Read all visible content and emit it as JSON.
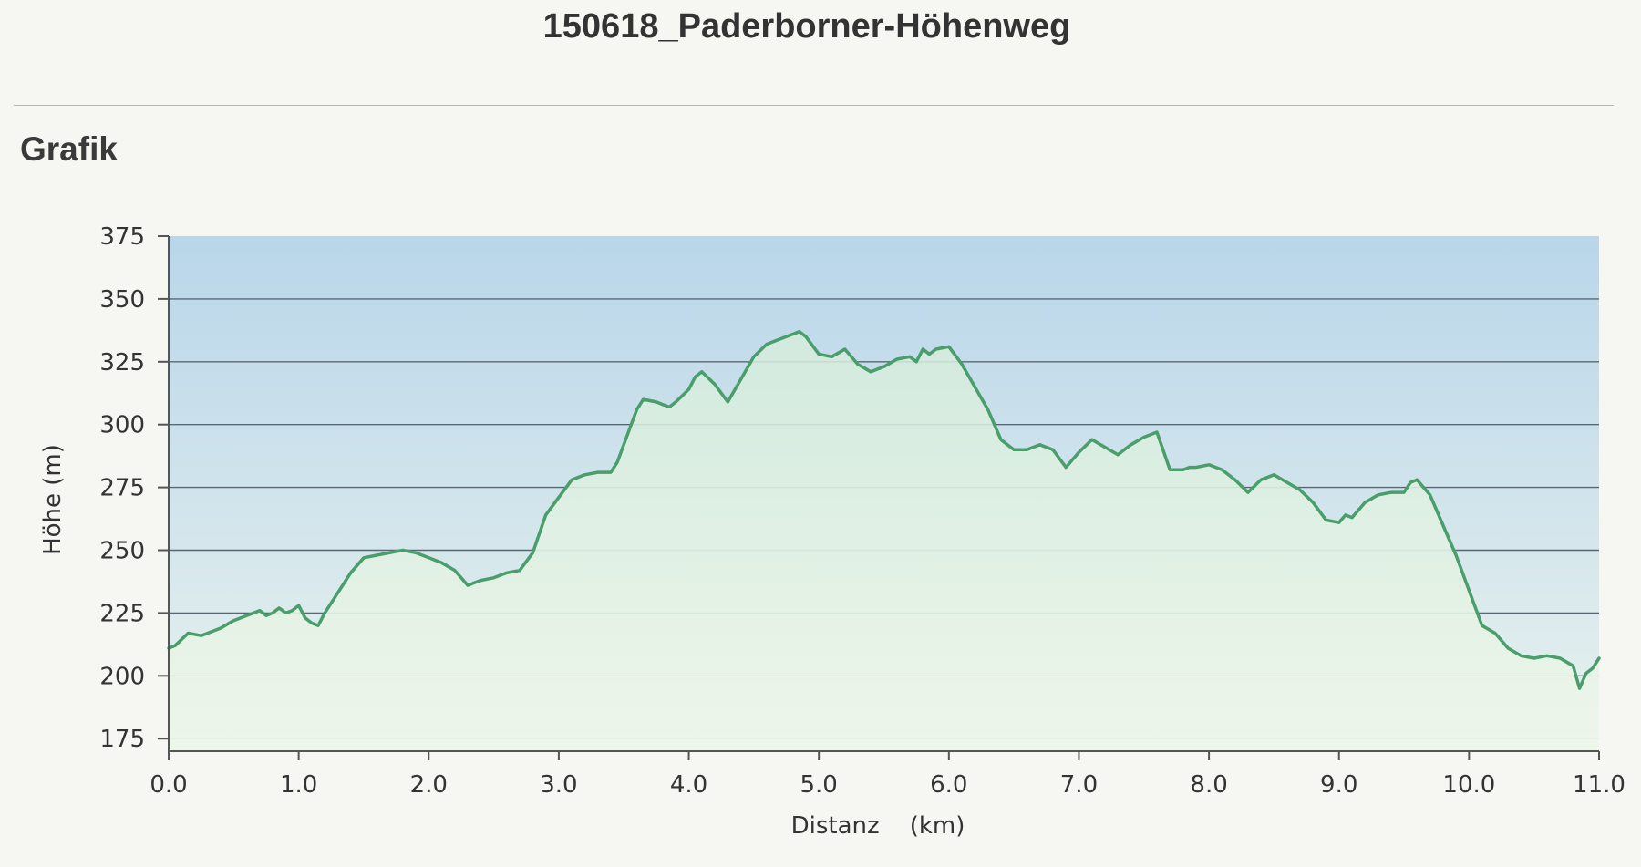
{
  "page": {
    "title": "150618_Paderborner-Höhenweg",
    "section_title": "Grafik"
  },
  "colors": {
    "line": "#4a9e6b",
    "plot_top": "#b9d6ea",
    "plot_bottom": "#e8f2ee",
    "grid": "#5a6772",
    "axis": "#555555",
    "text": "#333333"
  },
  "chart_data": {
    "type": "area",
    "title": "",
    "xlabel": "Distanz    (km)",
    "ylabel": "Höhe (m)",
    "xlim": [
      0,
      11.0
    ],
    "ylim": [
      170,
      375
    ],
    "x_ticks": [
      "0.0",
      "1.0",
      "2.0",
      "3.0",
      "4.0",
      "5.0",
      "6.0",
      "7.0",
      "8.0",
      "9.0",
      "10.0",
      "11.0"
    ],
    "y_ticks": [
      "375",
      "350",
      "325",
      "300",
      "275",
      "250",
      "225",
      "200",
      "175"
    ],
    "grid": true,
    "legend": false,
    "series": [
      {
        "x": [
          0.0,
          0.05,
          0.15,
          0.25,
          0.3,
          0.4,
          0.5,
          0.6,
          0.7,
          0.75,
          0.8,
          0.85,
          0.9,
          0.95,
          1.0,
          1.05,
          1.1,
          1.15,
          1.2,
          1.3,
          1.4,
          1.5,
          1.6,
          1.7,
          1.8,
          1.9,
          2.0,
          2.1,
          2.2,
          2.3,
          2.35,
          2.4,
          2.5,
          2.6,
          2.7,
          2.8,
          2.9,
          3.0,
          3.1,
          3.2,
          3.3,
          3.4,
          3.45,
          3.5,
          3.6,
          3.65,
          3.75,
          3.8,
          3.85,
          3.9,
          4.0,
          4.05,
          4.1,
          4.2,
          4.3,
          4.4,
          4.5,
          4.6,
          4.7,
          4.8,
          4.85,
          4.9,
          5.0,
          5.1,
          5.2,
          5.3,
          5.4,
          5.5,
          5.6,
          5.7,
          5.75,
          5.8,
          5.85,
          5.9,
          6.0,
          6.1,
          6.2,
          6.3,
          6.4,
          6.5,
          6.6,
          6.7,
          6.8,
          6.9,
          7.0,
          7.1,
          7.2,
          7.3,
          7.4,
          7.5,
          7.6,
          7.7,
          7.8,
          7.85,
          7.9,
          8.0,
          8.1,
          8.2,
          8.3,
          8.4,
          8.5,
          8.6,
          8.7,
          8.8,
          8.9,
          9.0,
          9.05,
          9.1,
          9.2,
          9.3,
          9.4,
          9.5,
          9.55,
          9.6,
          9.7,
          9.8,
          9.9,
          10.0,
          10.1,
          10.2,
          10.3,
          10.4,
          10.5,
          10.6,
          10.7,
          10.8,
          10.85,
          10.9,
          10.95,
          11.0
        ],
        "values": [
          211,
          212,
          217,
          216,
          217,
          219,
          222,
          224,
          226,
          224,
          225,
          227,
          225,
          226,
          228,
          223,
          221,
          220,
          225,
          233,
          241,
          247,
          248,
          249,
          250,
          249,
          247,
          245,
          242,
          236,
          237,
          238,
          239,
          241,
          242,
          249,
          264,
          271,
          278,
          280,
          281,
          281,
          285,
          292,
          306,
          310,
          309,
          308,
          307,
          309,
          314,
          319,
          321,
          316,
          309,
          318,
          327,
          332,
          334,
          336,
          337,
          335,
          328,
          327,
          330,
          324,
          321,
          323,
          326,
          327,
          325,
          330,
          328,
          330,
          331,
          324,
          315,
          306,
          294,
          290,
          290,
          292,
          290,
          283,
          289,
          294,
          291,
          288,
          292,
          295,
          297,
          282,
          282,
          283,
          283,
          284,
          282,
          278,
          273,
          278,
          280,
          277,
          274,
          269,
          262,
          261,
          264,
          263,
          269,
          272,
          273,
          273,
          277,
          278,
          272,
          260,
          248,
          234,
          220,
          217,
          211,
          208,
          207,
          208,
          207,
          204,
          195,
          201,
          203,
          207
        ]
      }
    ]
  }
}
